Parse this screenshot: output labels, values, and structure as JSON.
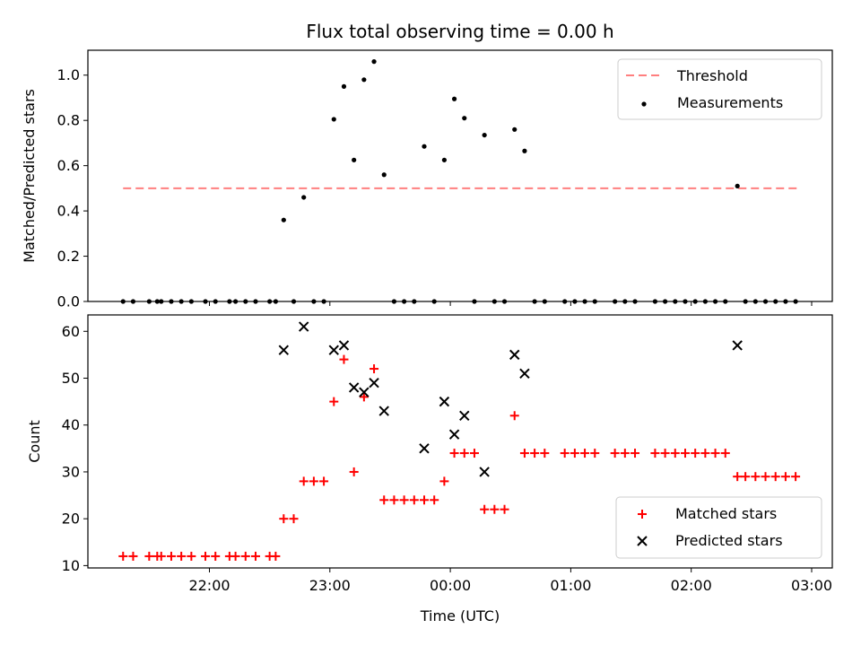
{
  "chart_data": {
    "title": "Flux total observing time = 0.00 h",
    "xlabel": "Time (UTC)",
    "x_ticks": [
      "22:00",
      "23:00",
      "00:00",
      "01:00",
      "02:00",
      "03:00"
    ],
    "panels": [
      {
        "type": "scatter",
        "ylabel": "Matched/Predicted stars",
        "ylim": [
          0,
          1.11
        ],
        "y_ticks": [
          "0.0",
          "0.2",
          "0.4",
          "0.6",
          "0.8",
          "1.0"
        ],
        "threshold": {
          "name": "Threshold",
          "value": 0.5,
          "x_start": "21:17",
          "x_end": "02:53",
          "color": "#ff7f7f"
        },
        "legend_position": "upper right",
        "series": [
          {
            "name": "Measurements",
            "color": "#000000",
            "marker": "dot",
            "points": [
              {
                "x": "21:17",
                "y": 0
              },
              {
                "x": "21:22",
                "y": 0
              },
              {
                "x": "21:30",
                "y": 0
              },
              {
                "x": "21:34",
                "y": 0
              },
              {
                "x": "21:36",
                "y": 0
              },
              {
                "x": "21:41",
                "y": 0
              },
              {
                "x": "21:46",
                "y": 0
              },
              {
                "x": "21:51",
                "y": 0
              },
              {
                "x": "21:58",
                "y": 0
              },
              {
                "x": "22:03",
                "y": 0
              },
              {
                "x": "22:10",
                "y": 0
              },
              {
                "x": "22:13",
                "y": 0
              },
              {
                "x": "22:18",
                "y": 0
              },
              {
                "x": "22:23",
                "y": 0
              },
              {
                "x": "22:30",
                "y": 0
              },
              {
                "x": "22:33",
                "y": 0
              },
              {
                "x": "22:37",
                "y": 0.36
              },
              {
                "x": "22:42",
                "y": 0
              },
              {
                "x": "22:47",
                "y": 0.46
              },
              {
                "x": "22:52",
                "y": 0
              },
              {
                "x": "22:57",
                "y": 0
              },
              {
                "x": "23:02",
                "y": 0.805
              },
              {
                "x": "23:07",
                "y": 0.95
              },
              {
                "x": "23:12",
                "y": 0.625
              },
              {
                "x": "23:17",
                "y": 0.98
              },
              {
                "x": "23:22",
                "y": 1.06
              },
              {
                "x": "23:27",
                "y": 0.56
              },
              {
                "x": "23:32",
                "y": 0
              },
              {
                "x": "23:37",
                "y": 0
              },
              {
                "x": "23:42",
                "y": 0
              },
              {
                "x": "23:47",
                "y": 0.685
              },
              {
                "x": "23:52",
                "y": 0
              },
              {
                "x": "23:57",
                "y": 0.625
              },
              {
                "x": "00:02",
                "y": 0.895
              },
              {
                "x": "00:07",
                "y": 0.81
              },
              {
                "x": "00:12",
                "y": 0
              },
              {
                "x": "00:17",
                "y": 0.735
              },
              {
                "x": "00:22",
                "y": 0
              },
              {
                "x": "00:27",
                "y": 0
              },
              {
                "x": "00:32",
                "y": 0.76
              },
              {
                "x": "00:37",
                "y": 0.665
              },
              {
                "x": "00:42",
                "y": 0
              },
              {
                "x": "00:47",
                "y": 0
              },
              {
                "x": "00:57",
                "y": 0
              },
              {
                "x": "01:02",
                "y": 0
              },
              {
                "x": "01:07",
                "y": 0
              },
              {
                "x": "01:12",
                "y": 0
              },
              {
                "x": "01:22",
                "y": 0
              },
              {
                "x": "01:27",
                "y": 0
              },
              {
                "x": "01:32",
                "y": 0
              },
              {
                "x": "01:42",
                "y": 0
              },
              {
                "x": "01:47",
                "y": 0
              },
              {
                "x": "01:52",
                "y": 0
              },
              {
                "x": "01:57",
                "y": 0
              },
              {
                "x": "02:02",
                "y": 0
              },
              {
                "x": "02:07",
                "y": 0
              },
              {
                "x": "02:12",
                "y": 0
              },
              {
                "x": "02:17",
                "y": 0
              },
              {
                "x": "02:23",
                "y": 0.51
              },
              {
                "x": "02:27",
                "y": 0
              },
              {
                "x": "02:32",
                "y": 0
              },
              {
                "x": "02:37",
                "y": 0
              },
              {
                "x": "02:42",
                "y": 0
              },
              {
                "x": "02:47",
                "y": 0
              },
              {
                "x": "02:52",
                "y": 0
              }
            ]
          }
        ]
      },
      {
        "type": "scatter",
        "ylabel": "Count",
        "ylim": [
          9.5,
          63.5
        ],
        "y_ticks": [
          "10",
          "20",
          "30",
          "40",
          "50",
          "60"
        ],
        "legend_position": "lower right",
        "series": [
          {
            "name": "Matched stars",
            "color": "#ff0000",
            "marker": "plus",
            "points": [
              {
                "x": "21:17",
                "y": 12
              },
              {
                "x": "21:22",
                "y": 12
              },
              {
                "x": "21:30",
                "y": 12
              },
              {
                "x": "21:34",
                "y": 12
              },
              {
                "x": "21:36",
                "y": 12
              },
              {
                "x": "21:41",
                "y": 12
              },
              {
                "x": "21:46",
                "y": 12
              },
              {
                "x": "21:51",
                "y": 12
              },
              {
                "x": "21:58",
                "y": 12
              },
              {
                "x": "22:03",
                "y": 12
              },
              {
                "x": "22:10",
                "y": 12
              },
              {
                "x": "22:13",
                "y": 12
              },
              {
                "x": "22:18",
                "y": 12
              },
              {
                "x": "22:23",
                "y": 12
              },
              {
                "x": "22:30",
                "y": 12
              },
              {
                "x": "22:33",
                "y": 12
              },
              {
                "x": "22:37",
                "y": 20
              },
              {
                "x": "22:42",
                "y": 20
              },
              {
                "x": "22:47",
                "y": 28
              },
              {
                "x": "22:52",
                "y": 28
              },
              {
                "x": "22:57",
                "y": 28
              },
              {
                "x": "23:02",
                "y": 45
              },
              {
                "x": "23:07",
                "y": 54
              },
              {
                "x": "23:12",
                "y": 30
              },
              {
                "x": "23:17",
                "y": 46
              },
              {
                "x": "23:22",
                "y": 52
              },
              {
                "x": "23:27",
                "y": 24
              },
              {
                "x": "23:32",
                "y": 24
              },
              {
                "x": "23:37",
                "y": 24
              },
              {
                "x": "23:42",
                "y": 24
              },
              {
                "x": "23:47",
                "y": 24
              },
              {
                "x": "23:52",
                "y": 24
              },
              {
                "x": "23:57",
                "y": 28
              },
              {
                "x": "00:02",
                "y": 34
              },
              {
                "x": "00:07",
                "y": 34
              },
              {
                "x": "00:12",
                "y": 34
              },
              {
                "x": "00:17",
                "y": 22
              },
              {
                "x": "00:22",
                "y": 22
              },
              {
                "x": "00:27",
                "y": 22
              },
              {
                "x": "00:32",
                "y": 42
              },
              {
                "x": "00:37",
                "y": 34
              },
              {
                "x": "00:42",
                "y": 34
              },
              {
                "x": "00:47",
                "y": 34
              },
              {
                "x": "00:57",
                "y": 34
              },
              {
                "x": "01:02",
                "y": 34
              },
              {
                "x": "01:07",
                "y": 34
              },
              {
                "x": "01:12",
                "y": 34
              },
              {
                "x": "01:22",
                "y": 34
              },
              {
                "x": "01:27",
                "y": 34
              },
              {
                "x": "01:32",
                "y": 34
              },
              {
                "x": "01:42",
                "y": 34
              },
              {
                "x": "01:47",
                "y": 34
              },
              {
                "x": "01:52",
                "y": 34
              },
              {
                "x": "01:57",
                "y": 34
              },
              {
                "x": "02:02",
                "y": 34
              },
              {
                "x": "02:07",
                "y": 34
              },
              {
                "x": "02:12",
                "y": 34
              },
              {
                "x": "02:17",
                "y": 34
              },
              {
                "x": "02:23",
                "y": 29
              },
              {
                "x": "02:27",
                "y": 29
              },
              {
                "x": "02:32",
                "y": 29
              },
              {
                "x": "02:37",
                "y": 29
              },
              {
                "x": "02:42",
                "y": 29
              },
              {
                "x": "02:47",
                "y": 29
              },
              {
                "x": "02:52",
                "y": 29
              }
            ]
          },
          {
            "name": "Predicted stars",
            "color": "#000000",
            "marker": "cross",
            "points": [
              {
                "x": "22:37",
                "y": 56
              },
              {
                "x": "22:47",
                "y": 61
              },
              {
                "x": "23:02",
                "y": 56
              },
              {
                "x": "23:07",
                "y": 57
              },
              {
                "x": "23:12",
                "y": 48
              },
              {
                "x": "23:17",
                "y": 47
              },
              {
                "x": "23:22",
                "y": 49
              },
              {
                "x": "23:27",
                "y": 43
              },
              {
                "x": "23:47",
                "y": 35
              },
              {
                "x": "23:57",
                "y": 45
              },
              {
                "x": "00:02",
                "y": 38
              },
              {
                "x": "00:07",
                "y": 42
              },
              {
                "x": "00:17",
                "y": 30
              },
              {
                "x": "00:32",
                "y": 55
              },
              {
                "x": "00:37",
                "y": 51
              },
              {
                "x": "02:23",
                "y": 57
              }
            ]
          }
        ]
      }
    ]
  }
}
